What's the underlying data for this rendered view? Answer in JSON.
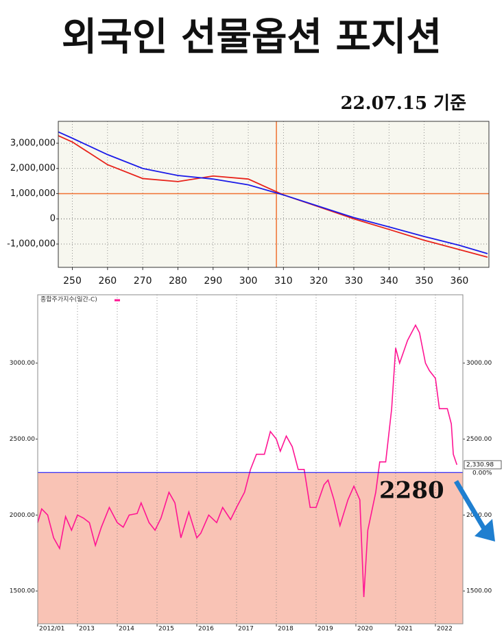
{
  "header": {
    "title": "외국인 선물옵션 포지션",
    "subtitle": "22.07.15 기준"
  },
  "chart_data": [
    {
      "type": "line",
      "x": [
        246,
        250,
        260,
        270,
        280,
        290,
        300,
        310,
        320,
        330,
        340,
        350,
        360,
        368
      ],
      "series": [
        {
          "color": "#e8221a",
          "values": [
            3300000,
            3050000,
            2150000,
            1600000,
            1480000,
            1700000,
            1580000,
            950000,
            480000,
            0,
            -420000,
            -850000,
            -1220000,
            -1520000
          ]
        },
        {
          "color": "#1a1ae8",
          "values": [
            3450000,
            3200000,
            2550000,
            2000000,
            1720000,
            1580000,
            1350000,
            950000,
            500000,
            50000,
            -320000,
            -700000,
            -1050000,
            -1380000
          ]
        }
      ],
      "xlim": [
        246,
        368.4
      ],
      "ylim": [
        -1925000,
        3870000
      ],
      "xticks": [
        250,
        260,
        270,
        280,
        290,
        300,
        310,
        320,
        330,
        340,
        350,
        360
      ],
      "yticks": [
        {
          "value": -1000000,
          "label": "-1,000,000"
        },
        0,
        {
          "value": 1000000,
          "label": "1,000,000"
        },
        {
          "value": 2000000,
          "label": "2,000,000"
        },
        {
          "value": 3000000,
          "label": "3,000,000"
        }
      ],
      "vline": 308,
      "hline": 1000000,
      "ref_color": "#f07030",
      "background": "#f7f7ef",
      "grid": true
    },
    {
      "type": "line",
      "x": [
        2012.0,
        2012.1,
        2012.25,
        2012.4,
        2012.55,
        2012.7,
        2012.85,
        2013.0,
        2013.15,
        2013.3,
        2013.45,
        2013.6,
        2013.8,
        2014.0,
        2014.15,
        2014.3,
        2014.5,
        2014.6,
        2014.8,
        2014.95,
        2015.1,
        2015.3,
        2015.45,
        2015.6,
        2015.8,
        2016.0,
        2016.1,
        2016.3,
        2016.5,
        2016.65,
        2016.85,
        2017.0,
        2017.2,
        2017.35,
        2017.5,
        2017.7,
        2017.85,
        2018.0,
        2018.1,
        2018.25,
        2018.4,
        2018.55,
        2018.7,
        2018.85,
        2019.0,
        2019.2,
        2019.3,
        2019.45,
        2019.6,
        2019.8,
        2019.95,
        2020.1,
        2020.2,
        2020.3,
        2020.5,
        2020.6,
        2020.75,
        2020.9,
        2021.0,
        2021.1,
        2021.3,
        2021.5,
        2021.6,
        2021.75,
        2021.85,
        2022.0,
        2022.1,
        2022.3,
        2022.4,
        2022.45,
        2022.54
      ],
      "series": [
        {
          "name": "종합주가지수(일간-C)",
          "color": "#ff1493",
          "values": [
            1950,
            2040,
            2000,
            1850,
            1780,
            1990,
            1900,
            2000,
            1980,
            1950,
            1800,
            1920,
            2050,
            1950,
            1920,
            2000,
            2010,
            2080,
            1950,
            1900,
            1980,
            2150,
            2080,
            1850,
            2020,
            1850,
            1880,
            2000,
            1950,
            2050,
            1970,
            2050,
            2150,
            2300,
            2400,
            2400,
            2550,
            2500,
            2420,
            2520,
            2450,
            2300,
            2300,
            2050,
            2050,
            2200,
            2230,
            2100,
            1930,
            2100,
            2190,
            2100,
            1460,
            1900,
            2150,
            2350,
            2350,
            2700,
            3100,
            3000,
            3150,
            3250,
            3200,
            3000,
            2950,
            2900,
            2700,
            2700,
            2600,
            2400,
            2330.98
          ]
        }
      ],
      "xlim": [
        2012,
        2022.69
      ],
      "ylim": [
        1284,
        3450
      ],
      "xticks": [
        {
          "value": 2012,
          "label": "2012/01"
        },
        2013,
        2014,
        2015,
        2016,
        2017,
        2018,
        2019,
        2020,
        2021,
        2022
      ],
      "yticks": [
        {
          "value": 1500,
          "label": "1500.00"
        },
        {
          "value": 2000,
          "label": "2000.00"
        },
        {
          "value": 2500,
          "label": "2500.00"
        },
        {
          "value": 3000,
          "label": "3000.00"
        }
      ],
      "hline": {
        "value": 2280,
        "label": "2280"
      },
      "hline_color": "#0000ff",
      "fill_below_color": "#f9c3b5",
      "last_label": {
        "value": 2330.98,
        "label": "2,330.98"
      },
      "change_label": "0.00%",
      "grid": true
    }
  ]
}
